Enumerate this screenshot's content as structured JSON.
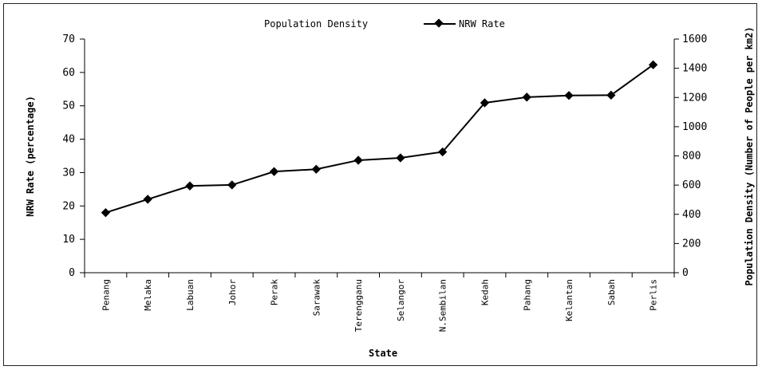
{
  "chart_data": {
    "type": "line",
    "title": "",
    "legend": {
      "position": "top-center",
      "items": [
        "Population Density",
        "NRW Rate"
      ]
    },
    "xlabel": "State",
    "ylabel": "NRW Rate (percentage)",
    "y2label": "Population Density (Number of People per km2)",
    "ylim": [
      0,
      70
    ],
    "y2lim": [
      0,
      1600
    ],
    "yticks": [
      "0",
      "10",
      "20",
      "30",
      "40",
      "50",
      "60",
      "70"
    ],
    "y2ticks": [
      "0",
      "200",
      "400",
      "600",
      "800",
      "1000",
      "1200",
      "1400",
      "1600"
    ],
    "categories": [
      "Penang",
      "Melaka",
      "Labuan",
      "Johor",
      "Perak",
      "Sarawak",
      "Terengganu",
      "Selangor",
      "N.Sembilan",
      "Kedah",
      "Pahang",
      "Kelantan",
      "Sabah",
      "Perlis"
    ],
    "series": [
      {
        "name": "NRW Rate",
        "marker": "diamond",
        "color": "#000000",
        "values": [
          18.0,
          22.0,
          26.0,
          26.3,
          30.3,
          31.0,
          33.7,
          34.4,
          36.2,
          50.9,
          52.6,
          53.1,
          53.2,
          62.3
        ]
      }
    ],
    "grid": false
  }
}
